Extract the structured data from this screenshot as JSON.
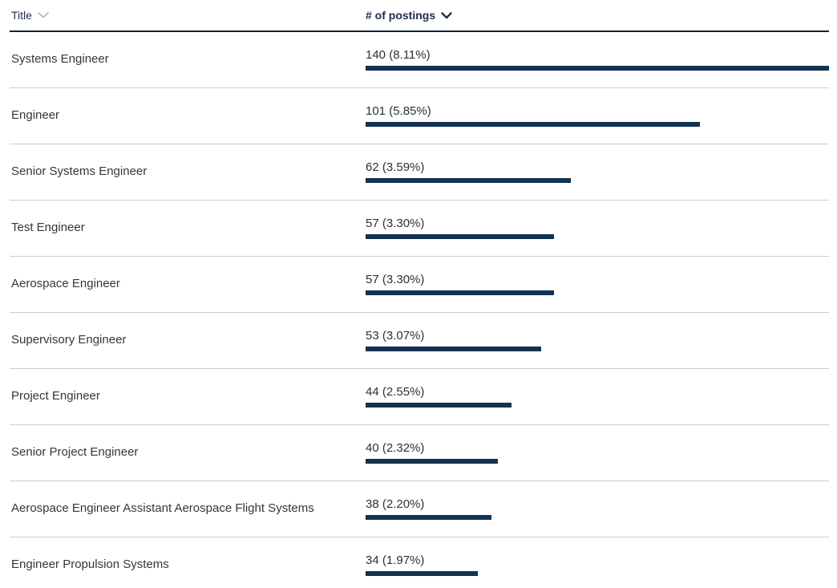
{
  "table": {
    "columns": {
      "title": {
        "label": "Title",
        "sort_icon": "chevron-down",
        "sort_active": false
      },
      "postings": {
        "label": "# of postings",
        "sort_icon": "chevron-down",
        "sort_active": true,
        "sort_direction": "descending"
      }
    },
    "rows": [
      {
        "title": "Systems Engineer",
        "value": 140,
        "label": "140 (8.11%)"
      },
      {
        "title": "Engineer",
        "value": 101,
        "label": "101 (5.85%)"
      },
      {
        "title": "Senior Systems Engineer",
        "value": 62,
        "label": "62 (3.59%)"
      },
      {
        "title": "Test Engineer",
        "value": 57,
        "label": "57 (3.30%)"
      },
      {
        "title": "Aerospace Engineer",
        "value": 57,
        "label": "57 (3.30%)"
      },
      {
        "title": "Supervisory Engineer",
        "value": 53,
        "label": "53 (3.07%)"
      },
      {
        "title": "Project Engineer",
        "value": 44,
        "label": "44 (2.55%)"
      },
      {
        "title": "Senior Project Engineer",
        "value": 40,
        "label": "40 (2.32%)"
      },
      {
        "title": "Aerospace Engineer Assistant Aerospace Flight Systems",
        "value": 38,
        "label": "38 (2.20%)"
      },
      {
        "title": "Engineer Propulsion Systems",
        "value": 34,
        "label": "34 (1.97%)"
      }
    ],
    "max_value": 140
  },
  "chart_data": {
    "type": "bar",
    "orientation": "horizontal",
    "title": "",
    "xlabel": "# of postings",
    "ylabel": "Title",
    "categories": [
      "Systems Engineer",
      "Engineer",
      "Senior Systems Engineer",
      "Test Engineer",
      "Aerospace Engineer",
      "Supervisory Engineer",
      "Project Engineer",
      "Senior Project Engineer",
      "Aerospace Engineer Assistant Aerospace Flight Systems",
      "Engineer Propulsion Systems"
    ],
    "values": [
      140,
      101,
      62,
      57,
      57,
      53,
      44,
      40,
      38,
      34
    ],
    "percentages": [
      8.11,
      5.85,
      3.59,
      3.3,
      3.3,
      3.07,
      2.55,
      2.32,
      2.2,
      1.97
    ],
    "data_labels": [
      "140 (8.11%)",
      "101 (5.85%)",
      "62 (3.59%)",
      "57 (3.30%)",
      "57 (3.30%)",
      "53 (3.07%)",
      "44 (2.55%)",
      "40 (2.32%)",
      "38 (2.20%)",
      "34 (1.97%)"
    ],
    "xlim": [
      0,
      140
    ],
    "grid": false,
    "legend": false,
    "sorted_by": "# of postings, descending",
    "bar_color": "#123250"
  },
  "colors": {
    "bar": "#123250",
    "header_text": "#1C2E4A",
    "row_text": "#33363C",
    "divider": "#CCCCCC",
    "header_border": "#14222F",
    "chevron_inactive": "#B4B8C0"
  }
}
